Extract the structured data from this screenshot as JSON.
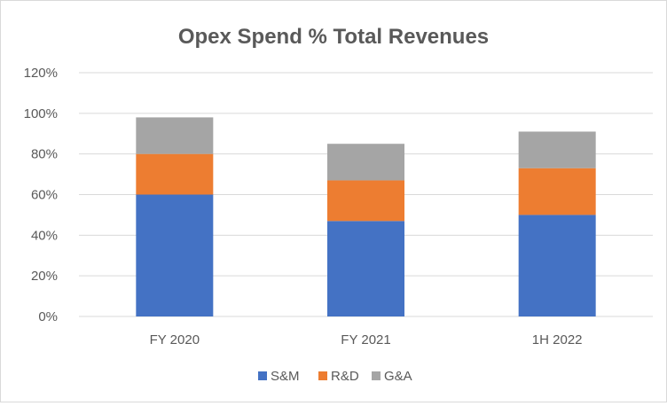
{
  "chart_data": {
    "type": "bar",
    "stacked": true,
    "title": "Opex Spend % Total Revenues",
    "xlabel": "",
    "ylabel": "",
    "categories": [
      "FY 2020",
      "FY 2021",
      "1H 2022"
    ],
    "series": [
      {
        "name": "S&M",
        "values": [
          60,
          47,
          50
        ],
        "color": "#4472C4"
      },
      {
        "name": "R&D",
        "values": [
          20,
          20,
          23
        ],
        "color": "#ED7D31"
      },
      {
        "name": "G&A",
        "values": [
          18,
          18,
          18
        ],
        "color": "#A5A5A5"
      }
    ],
    "ylim": [
      0,
      120
    ],
    "yticks": [
      "0%",
      "20%",
      "40%",
      "60%",
      "80%",
      "100%",
      "120%"
    ],
    "grid": true,
    "legend": "bottom"
  }
}
